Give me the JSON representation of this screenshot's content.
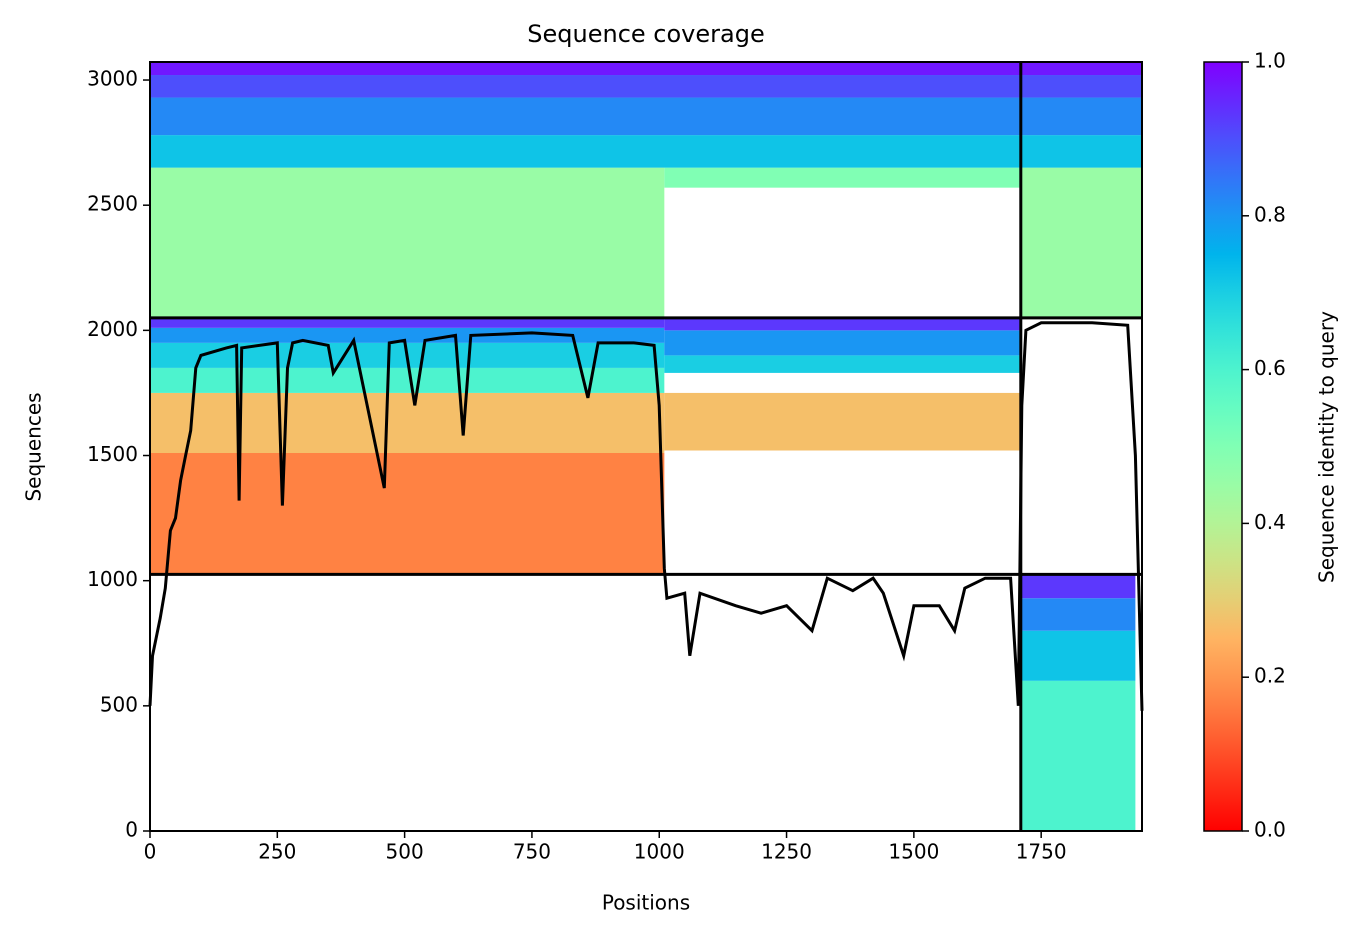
{
  "chart_data": {
    "type": "msa_coverage",
    "title": "Sequence coverage",
    "xlabel": "Positions",
    "ylabel": "Sequences",
    "colorbar_label": "Sequence identity to query",
    "xlim": [
      0,
      1948
    ],
    "ylim": [
      0,
      3072
    ],
    "xticks": [
      0,
      250,
      500,
      750,
      1000,
      1250,
      1500,
      1750
    ],
    "yticks": [
      0,
      500,
      1000,
      1500,
      2000,
      2500,
      3000
    ],
    "colorbar_lim": [
      0,
      1
    ],
    "colorbar_ticks": [
      {
        "value": 0,
        "label": "0.0"
      },
      0.2,
      0.4,
      0.6,
      0.8,
      {
        "value": 1,
        "label": "1.0"
      }
    ],
    "chain_breaks": {
      "x": [
        1710
      ],
      "y": [
        1025,
        2050
      ]
    },
    "blocks": [
      {
        "x": [
          0,
          1010
        ],
        "y": [
          1025,
          1510
        ],
        "identity": 0.17
      },
      {
        "x": [
          0,
          1010
        ],
        "y": [
          1510,
          1750
        ],
        "identity": 0.27
      },
      {
        "x": [
          0,
          1010
        ],
        "y": [
          1750,
          1850
        ],
        "identity": 0.6
      },
      {
        "x": [
          0,
          1010
        ],
        "y": [
          1850,
          1950
        ],
        "identity": 0.7
      },
      {
        "x": [
          0,
          1010
        ],
        "y": [
          1950,
          2010
        ],
        "identity": 0.8
      },
      {
        "x": [
          0,
          1010
        ],
        "y": [
          2010,
          2050
        ],
        "identity": 0.93
      },
      {
        "x": [
          1010,
          1710
        ],
        "y": [
          1520,
          1750
        ],
        "identity": 0.27
      },
      {
        "x": [
          1010,
          1710
        ],
        "y": [
          1830,
          1900
        ],
        "identity": 0.7
      },
      {
        "x": [
          1010,
          1710
        ],
        "y": [
          1900,
          2000
        ],
        "identity": 0.8
      },
      {
        "x": [
          1010,
          1710
        ],
        "y": [
          2000,
          2050
        ],
        "identity": 0.93
      },
      {
        "x": [
          0,
          1010
        ],
        "y": [
          2050,
          2650
        ],
        "identity": 0.45
      },
      {
        "x": [
          1710,
          1948
        ],
        "y": [
          2050,
          2650
        ],
        "identity": 0.45
      },
      {
        "x": [
          1010,
          1710
        ],
        "y": [
          2570,
          2650
        ],
        "identity": 0.5
      },
      {
        "x": [
          0,
          1948
        ],
        "y": [
          2650,
          2780
        ],
        "identity": 0.72
      },
      {
        "x": [
          0,
          1948
        ],
        "y": [
          2780,
          2930
        ],
        "identity": 0.82
      },
      {
        "x": [
          0,
          1948
        ],
        "y": [
          2930,
          3020
        ],
        "identity": 0.9
      },
      {
        "x": [
          0,
          1948
        ],
        "y": [
          3020,
          3072
        ],
        "identity": 0.97
      },
      {
        "x": [
          1710,
          1935
        ],
        "y": [
          0,
          600
        ],
        "identity": 0.6
      },
      {
        "x": [
          1710,
          1935
        ],
        "y": [
          600,
          800
        ],
        "identity": 0.72
      },
      {
        "x": [
          1710,
          1935
        ],
        "y": [
          800,
          930
        ],
        "identity": 0.82
      },
      {
        "x": [
          1710,
          1935
        ],
        "y": [
          930,
          1025
        ],
        "identity": 0.93
      }
    ],
    "coverage": {
      "color": "#000000",
      "x": [
        0,
        5,
        20,
        30,
        40,
        50,
        60,
        70,
        80,
        90,
        100,
        150,
        170,
        175,
        180,
        250,
        260,
        270,
        280,
        300,
        350,
        360,
        400,
        460,
        470,
        500,
        520,
        540,
        600,
        615,
        630,
        750,
        830,
        860,
        880,
        950,
        990,
        1000,
        1010,
        1015,
        1050,
        1060,
        1080,
        1150,
        1200,
        1250,
        1300,
        1330,
        1380,
        1420,
        1440,
        1480,
        1500,
        1550,
        1580,
        1600,
        1640,
        1690,
        1705,
        1712,
        1720,
        1750,
        1850,
        1920,
        1935,
        1948
      ],
      "values": [
        500,
        700,
        850,
        970,
        1200,
        1250,
        1400,
        1500,
        1600,
        1850,
        1900,
        1930,
        1940,
        1320,
        1930,
        1950,
        1300,
        1850,
        1950,
        1960,
        1940,
        1830,
        1960,
        1370,
        1950,
        1960,
        1700,
        1960,
        1980,
        1580,
        1980,
        1990,
        1980,
        1730,
        1950,
        1950,
        1940,
        1700,
        1050,
        930,
        950,
        700,
        950,
        900,
        870,
        900,
        800,
        1010,
        960,
        1010,
        950,
        700,
        900,
        900,
        800,
        970,
        1010,
        1010,
        500,
        1700,
        2000,
        2030,
        2030,
        2020,
        1500,
        480
      ]
    }
  }
}
